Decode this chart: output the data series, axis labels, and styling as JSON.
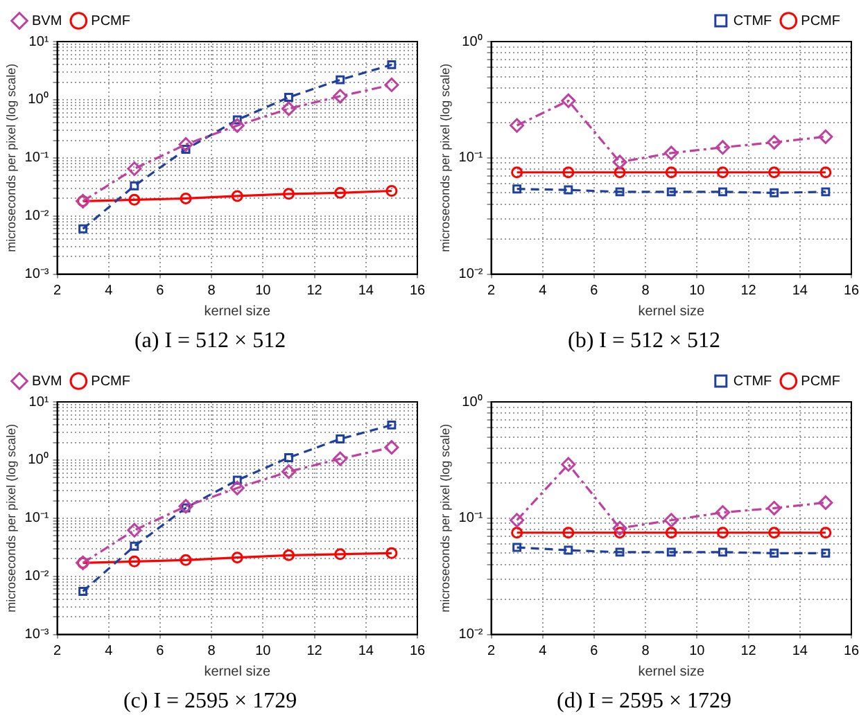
{
  "chart_data": [
    {
      "type": "line",
      "title": "(a) I = 512 × 512",
      "xlabel": "kernel size",
      "ylabel": "microseconds per pixel (log scale)",
      "x": [
        3,
        5,
        7,
        9,
        11,
        13,
        15
      ],
      "xlim": [
        2,
        16
      ],
      "xticks": [
        2,
        4,
        6,
        8,
        10,
        12,
        14,
        16
      ],
      "ylim": [
        0.001,
        10
      ],
      "log": true,
      "grid": true,
      "legend": "top left",
      "yticks": [
        {
          "value": 0.001,
          "label": "10⁻³"
        },
        {
          "value": 0.002,
          "label": null
        },
        {
          "value": 0.003,
          "label": null
        },
        {
          "value": 0.004,
          "label": null
        },
        {
          "value": 0.005,
          "label": null
        },
        {
          "value": 0.006,
          "label": null
        },
        {
          "value": 0.007,
          "label": null
        },
        {
          "value": 0.008,
          "label": null
        },
        {
          "value": 0.009,
          "label": null
        },
        {
          "value": 0.01,
          "label": "10⁻²"
        },
        {
          "value": 0.02,
          "label": null
        },
        {
          "value": 0.03,
          "label": null
        },
        {
          "value": 0.04,
          "label": null
        },
        {
          "value": 0.05,
          "label": null
        },
        {
          "value": 0.06,
          "label": null
        },
        {
          "value": 0.07,
          "label": null
        },
        {
          "value": 0.08,
          "label": null
        },
        {
          "value": 0.09,
          "label": null
        },
        {
          "value": 0.1,
          "label": "10⁻¹"
        },
        {
          "value": 0.2,
          "label": null
        },
        {
          "value": 0.3,
          "label": null
        },
        {
          "value": 0.4,
          "label": null
        },
        {
          "value": 0.5,
          "label": null
        },
        {
          "value": 0.6,
          "label": null
        },
        {
          "value": 0.7,
          "label": null
        },
        {
          "value": 0.8,
          "label": null
        },
        {
          "value": 0.9,
          "label": null
        },
        {
          "value": 1,
          "label": "10⁰"
        },
        {
          "value": 2,
          "label": null
        },
        {
          "value": 3,
          "label": null
        },
        {
          "value": 4,
          "label": null
        },
        {
          "value": 5,
          "label": null
        },
        {
          "value": 6,
          "label": null
        },
        {
          "value": 7,
          "label": null
        },
        {
          "value": 8,
          "label": null
        },
        {
          "value": 9,
          "label": null
        },
        {
          "value": 10,
          "label": "10¹"
        }
      ],
      "series": [
        {
          "name": "PCMF",
          "color": "#ff0000",
          "marker": "circle",
          "line_style": "solid",
          "values": [
            0.018,
            0.019,
            0.02,
            0.022,
            0.024,
            0.025,
            0.027
          ]
        },
        {
          "color": "#2040a0",
          "marker": "square",
          "line_style": "dashed",
          "values": [
            0.006,
            0.033,
            0.14,
            0.45,
            1.1,
            2.2,
            4.0
          ]
        },
        {
          "name": "BVM",
          "color": "#c040a0",
          "marker": "diamond",
          "line_style": "dashdot",
          "values": [
            0.018,
            0.065,
            0.17,
            0.36,
            0.7,
            1.15,
            1.8
          ]
        }
      ]
    },
    {
      "type": "line",
      "title": "(b) I = 512 × 512",
      "xlabel": "kernel size",
      "ylabel": "microseconds per pixel (log scale)",
      "x": [
        3,
        5,
        7,
        9,
        11,
        13,
        15
      ],
      "xlim": [
        2,
        16
      ],
      "xticks": [
        2,
        4,
        6,
        8,
        10,
        12,
        14,
        16
      ],
      "ylim": [
        0.01,
        1
      ],
      "log": true,
      "grid": true,
      "legend": "top right",
      "yticks": [
        {
          "value": 0.01,
          "label": "10⁻²"
        },
        {
          "value": 0.02,
          "label": null
        },
        {
          "value": 0.03,
          "label": null
        },
        {
          "value": 0.04,
          "label": null
        },
        {
          "value": 0.05,
          "label": null
        },
        {
          "value": 0.06,
          "label": null
        },
        {
          "value": 0.07,
          "label": null
        },
        {
          "value": 0.08,
          "label": null
        },
        {
          "value": 0.09,
          "label": null
        },
        {
          "value": 0.1,
          "label": "10⁻¹"
        },
        {
          "value": 0.2,
          "label": null
        },
        {
          "value": 0.3,
          "label": null
        },
        {
          "value": 0.4,
          "label": null
        },
        {
          "value": 0.5,
          "label": null
        },
        {
          "value": 0.6,
          "label": null
        },
        {
          "value": 0.7,
          "label": null
        },
        {
          "value": 0.8,
          "label": null
        },
        {
          "value": 0.9,
          "label": null
        },
        {
          "value": 1,
          "label": "10⁰"
        }
      ],
      "series": [
        {
          "name": "PCMF",
          "color": "#ff0000",
          "marker": "circle",
          "line_style": "solid",
          "values": [
            0.075,
            0.075,
            0.075,
            0.075,
            0.075,
            0.075,
            0.075
          ]
        },
        {
          "name": "CTMF",
          "color": "#2040a0",
          "marker": "square",
          "line_style": "dashed",
          "values": [
            0.054,
            0.053,
            0.051,
            0.051,
            0.051,
            0.05,
            0.051
          ]
        },
        {
          "color": "#c040a0",
          "marker": "diamond",
          "line_style": "dashdot",
          "values": [
            0.19,
            0.31,
            0.092,
            0.11,
            0.123,
            0.136,
            0.152
          ]
        }
      ]
    },
    {
      "type": "line",
      "title": "(c) I = 2595 × 1729",
      "xlabel": "kernel size",
      "ylabel": "microseconds per pixel (log scale)",
      "x": [
        3,
        5,
        7,
        9,
        11,
        13,
        15
      ],
      "xlim": [
        2,
        16
      ],
      "xticks": [
        2,
        4,
        6,
        8,
        10,
        12,
        14,
        16
      ],
      "ylim": [
        0.001,
        10
      ],
      "log": true,
      "grid": true,
      "legend": "top left",
      "yticks": [
        {
          "value": 0.001,
          "label": "10⁻³"
        },
        {
          "value": 0.002,
          "label": null
        },
        {
          "value": 0.003,
          "label": null
        },
        {
          "value": 0.004,
          "label": null
        },
        {
          "value": 0.005,
          "label": null
        },
        {
          "value": 0.006,
          "label": null
        },
        {
          "value": 0.007,
          "label": null
        },
        {
          "value": 0.008,
          "label": null
        },
        {
          "value": 0.009,
          "label": null
        },
        {
          "value": 0.01,
          "label": "10⁻²"
        },
        {
          "value": 0.02,
          "label": null
        },
        {
          "value": 0.03,
          "label": null
        },
        {
          "value": 0.04,
          "label": null
        },
        {
          "value": 0.05,
          "label": null
        },
        {
          "value": 0.06,
          "label": null
        },
        {
          "value": 0.07,
          "label": null
        },
        {
          "value": 0.08,
          "label": null
        },
        {
          "value": 0.09,
          "label": null
        },
        {
          "value": 0.1,
          "label": "10⁻¹"
        },
        {
          "value": 0.2,
          "label": null
        },
        {
          "value": 0.3,
          "label": null
        },
        {
          "value": 0.4,
          "label": null
        },
        {
          "value": 0.5,
          "label": null
        },
        {
          "value": 0.6,
          "label": null
        },
        {
          "value": 0.7,
          "label": null
        },
        {
          "value": 0.8,
          "label": null
        },
        {
          "value": 0.9,
          "label": null
        },
        {
          "value": 1,
          "label": "10⁰"
        },
        {
          "value": 2,
          "label": null
        },
        {
          "value": 3,
          "label": null
        },
        {
          "value": 4,
          "label": null
        },
        {
          "value": 5,
          "label": null
        },
        {
          "value": 6,
          "label": null
        },
        {
          "value": 7,
          "label": null
        },
        {
          "value": 8,
          "label": null
        },
        {
          "value": 9,
          "label": null
        },
        {
          "value": 10,
          "label": "10¹"
        }
      ],
      "series": [
        {
          "name": "PCMF",
          "color": "#ff0000",
          "marker": "circle",
          "line_style": "solid",
          "values": [
            0.017,
            0.018,
            0.019,
            0.021,
            0.023,
            0.024,
            0.025
          ]
        },
        {
          "color": "#2040a0",
          "marker": "square",
          "line_style": "dashed",
          "values": [
            0.0055,
            0.033,
            0.15,
            0.45,
            1.1,
            2.3,
            4.0
          ]
        },
        {
          "name": "BVM",
          "color": "#c040a0",
          "marker": "diamond",
          "line_style": "dashdot",
          "values": [
            0.017,
            0.062,
            0.16,
            0.33,
            0.63,
            1.05,
            1.65
          ]
        }
      ]
    },
    {
      "type": "line",
      "title": "(d) I = 2595 × 1729",
      "xlabel": "kernel size",
      "ylabel": "microseconds per pixel (log scale)",
      "x": [
        3,
        5,
        7,
        9,
        11,
        13,
        15
      ],
      "xlim": [
        2,
        16
      ],
      "xticks": [
        2,
        4,
        6,
        8,
        10,
        12,
        14,
        16
      ],
      "ylim": [
        0.01,
        1
      ],
      "log": true,
      "grid": true,
      "legend": "top right",
      "yticks": [
        {
          "value": 0.01,
          "label": "10⁻²"
        },
        {
          "value": 0.02,
          "label": null
        },
        {
          "value": 0.03,
          "label": null
        },
        {
          "value": 0.04,
          "label": null
        },
        {
          "value": 0.05,
          "label": null
        },
        {
          "value": 0.06,
          "label": null
        },
        {
          "value": 0.07,
          "label": null
        },
        {
          "value": 0.08,
          "label": null
        },
        {
          "value": 0.09,
          "label": null
        },
        {
          "value": 0.1,
          "label": "10⁻¹"
        },
        {
          "value": 0.2,
          "label": null
        },
        {
          "value": 0.3,
          "label": null
        },
        {
          "value": 0.4,
          "label": null
        },
        {
          "value": 0.5,
          "label": null
        },
        {
          "value": 0.6,
          "label": null
        },
        {
          "value": 0.7,
          "label": null
        },
        {
          "value": 0.8,
          "label": null
        },
        {
          "value": 0.9,
          "label": null
        },
        {
          "value": 1,
          "label": "10⁰"
        }
      ],
      "series": [
        {
          "name": "PCMF",
          "color": "#ff0000",
          "marker": "circle",
          "line_style": "solid",
          "values": [
            0.075,
            0.075,
            0.075,
            0.075,
            0.075,
            0.075,
            0.075
          ]
        },
        {
          "name": "CTMF",
          "color": "#2040a0",
          "marker": "square",
          "line_style": "dashed",
          "values": [
            0.056,
            0.053,
            0.051,
            0.051,
            0.051,
            0.05,
            0.05
          ]
        },
        {
          "color": "#c040a0",
          "marker": "diamond",
          "line_style": "dashdot",
          "values": [
            0.096,
            0.29,
            0.082,
            0.096,
            0.112,
            0.122,
            0.136
          ]
        }
      ]
    }
  ]
}
